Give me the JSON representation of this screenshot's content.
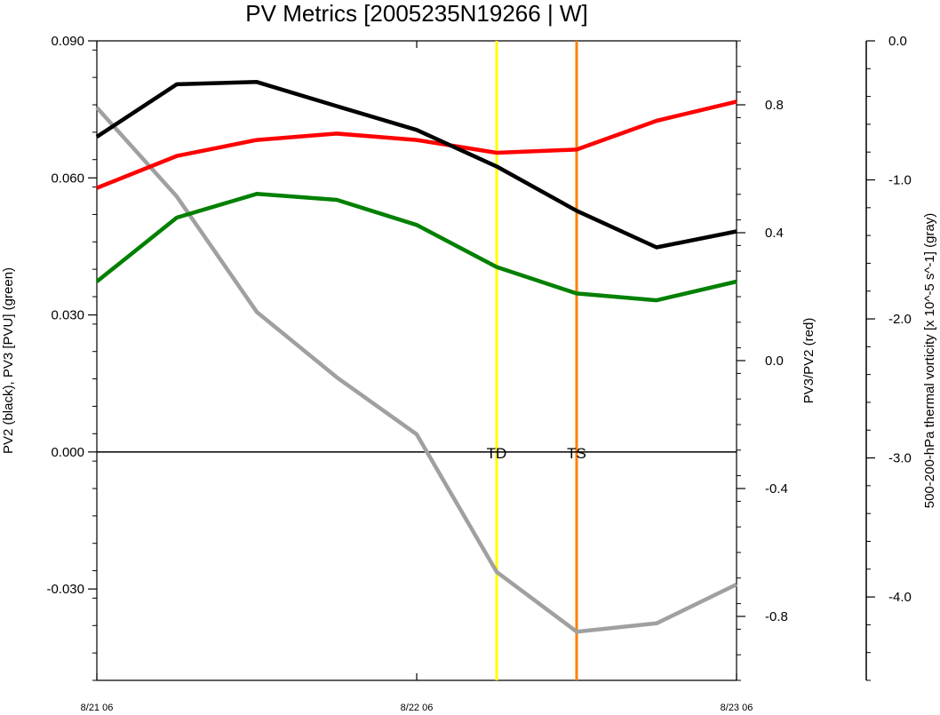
{
  "chart_data": {
    "type": "line",
    "title": "PV Metrics [2005235N19266 | W]",
    "x": [
      "8/21 06",
      "8/21 12",
      "8/21 18",
      "8/22 00",
      "8/22 06",
      "8/22 12",
      "8/22 18",
      "8/23 00",
      "8/23 06"
    ],
    "x_tick_labels": [
      "8/21 06",
      "8/22 06",
      "8/23 06"
    ],
    "axes": {
      "left": {
        "label": "PV2 (black), PV3 [PVU] (green)",
        "ylim": [
          -0.05,
          0.09
        ],
        "ticks": [
          0.09,
          0.06,
          0.03,
          0.0,
          -0.03
        ],
        "tick_labels": [
          "0.090",
          "0.060",
          "0.030",
          "0.000",
          "-0.030"
        ]
      },
      "right": {
        "label": "PV3/PV2 (red)",
        "ylim": [
          -1.0,
          1.0
        ],
        "ticks": [
          0.8,
          0.4,
          0.0,
          -0.4,
          -0.8
        ],
        "tick_labels": [
          "0.8",
          "0.4",
          "0.0",
          "-0.4",
          "-0.8"
        ]
      },
      "far_right": {
        "label": "500-200-hPa thermal vorticity [x 10^-5 s^-1] (gray)",
        "ylim": [
          -4.6,
          0.0
        ],
        "ticks": [
          0.0,
          -1.0,
          -2.0,
          -3.0,
          -4.0
        ],
        "tick_labels": [
          "0.0",
          "-1.0",
          "-2.0",
          "-3.0",
          "-4.0"
        ]
      }
    },
    "series": [
      {
        "key": "pv2",
        "axis": "left",
        "color": "#000000",
        "values": [
          0.069,
          0.0805,
          0.081,
          0.0757,
          0.0705,
          0.0625,
          0.0528,
          0.0448,
          0.0483
        ]
      },
      {
        "key": "pv3",
        "axis": "left",
        "color": "#008000",
        "values": [
          0.0373,
          0.0513,
          0.0565,
          0.0552,
          0.0497,
          0.0405,
          0.0347,
          0.0332,
          0.0373
        ]
      },
      {
        "key": "ratio",
        "axis": "right",
        "color": "#ff0000",
        "values": [
          0.54,
          0.64,
          0.69,
          0.71,
          0.69,
          0.65,
          0.66,
          0.75,
          0.81
        ]
      },
      {
        "key": "vort",
        "axis": "far_right",
        "color": "#a0a0a0",
        "values": [
          -0.48,
          -1.12,
          -1.95,
          -2.42,
          -2.83,
          -3.82,
          -4.25,
          -4.19,
          -3.91
        ]
      }
    ],
    "zero_line": 0.0,
    "vertical_lines": [
      {
        "label": "TD",
        "x": "8/22 12",
        "color": "#ffff00"
      },
      {
        "label": "TS",
        "x": "8/22 18",
        "color": "#ff8000"
      }
    ],
    "grid": false
  }
}
